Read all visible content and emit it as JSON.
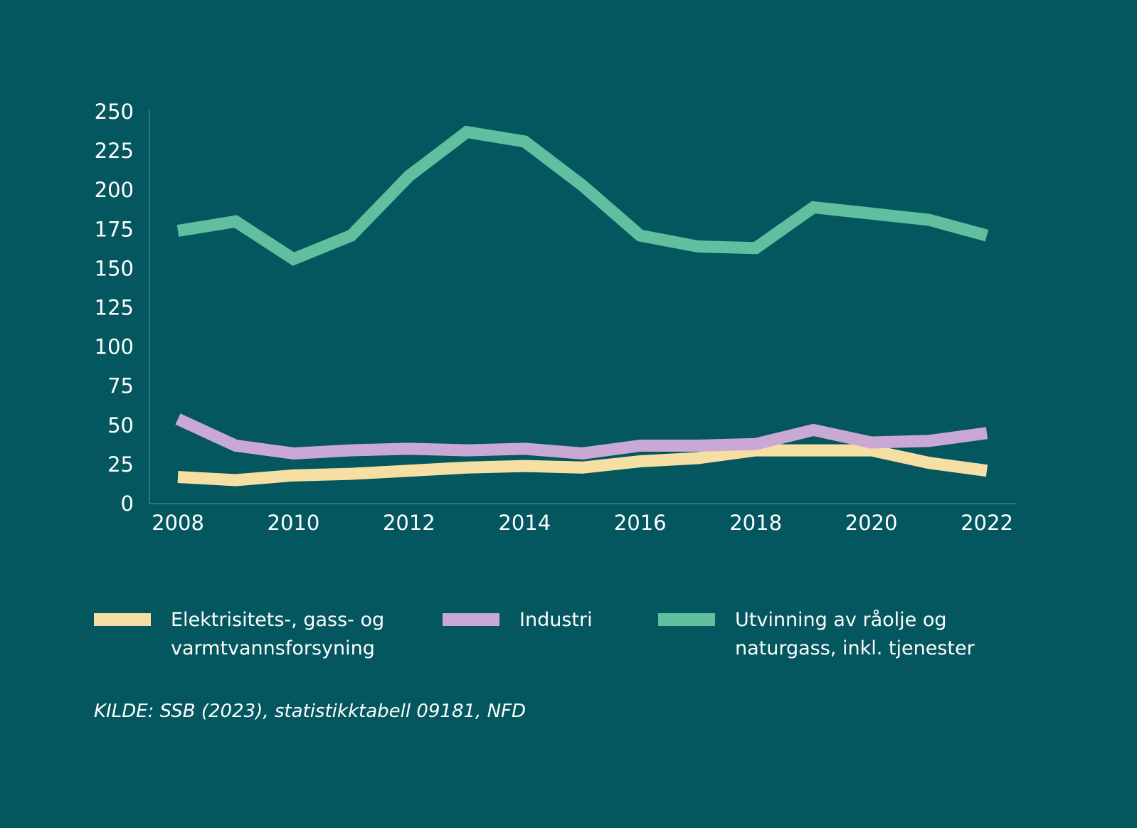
{
  "chart_data": {
    "type": "line",
    "title": "",
    "xlabel": "",
    "ylabel": "",
    "x": [
      2008,
      2009,
      2010,
      2011,
      2012,
      2013,
      2014,
      2015,
      2016,
      2017,
      2018,
      2019,
      2020,
      2021,
      2022
    ],
    "x_ticks": [
      "2008",
      "2010",
      "2012",
      "2014",
      "2016",
      "2018",
      "2020",
      "2022"
    ],
    "y_ticks": [
      "0",
      "25",
      "50",
      "75",
      "100",
      "125",
      "150",
      "175",
      "200",
      "225",
      "250"
    ],
    "ylim": [
      0,
      250
    ],
    "grid": false,
    "legend_position": "bottom",
    "series": [
      {
        "name": "Elektrisitets-, gass- og varmtvannsforsyning",
        "color": "#f6dfa3",
        "values": [
          17,
          15,
          18,
          19,
          21,
          23,
          24,
          23,
          27,
          29,
          34,
          34,
          34,
          26,
          21
        ]
      },
      {
        "name": "Industri",
        "color": "#c9a8d4",
        "values": [
          54,
          37,
          32,
          34,
          35,
          34,
          35,
          32,
          37,
          37,
          38,
          47,
          39,
          40,
          45
        ]
      },
      {
        "name": "Utvinning av råolje og naturgass, inkl. tjenester",
        "color": "#5fbf9f",
        "values": [
          174,
          180,
          156,
          171,
          209,
          237,
          231,
          203,
          171,
          164,
          163,
          189,
          185,
          181,
          171
        ]
      }
    ]
  },
  "legend": [
    {
      "line1": "Elektrisitets-, gass- og",
      "line2": "varmtvannsforsyning"
    },
    {
      "line1": "Industri",
      "line2": ""
    },
    {
      "line1": "Utvinning av råolje og",
      "line2": "naturgass, inkl. tjenester"
    }
  ],
  "source": "KILDE: SSB (2023), statistikktabell 09181, NFD",
  "colors": {
    "background": "#04565f",
    "axis": "#2a8a8a"
  }
}
